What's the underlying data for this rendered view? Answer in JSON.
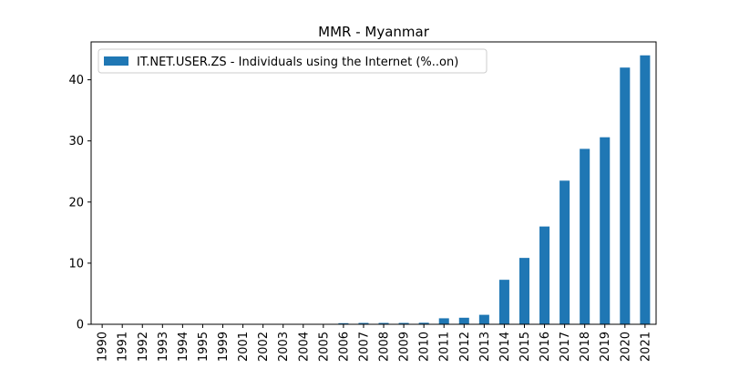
{
  "chart_data": {
    "type": "bar",
    "title": "MMR - Myanmar",
    "xlabel": "",
    "ylabel": "",
    "categories": [
      "1990",
      "1991",
      "1992",
      "1993",
      "1994",
      "1995",
      "1999",
      "2001",
      "2002",
      "2003",
      "2004",
      "2005",
      "2006",
      "2007",
      "2008",
      "2009",
      "2010",
      "2011",
      "2012",
      "2013",
      "2014",
      "2015",
      "2016",
      "2017",
      "2018",
      "2019",
      "2020",
      "2021"
    ],
    "series": [
      {
        "name": "IT.NET.USER.ZS - Individuals using the Internet (%..on)",
        "color": "#1f77b4",
        "values": [
          0,
          0,
          0,
          0,
          0,
          0,
          0.001,
          0.01,
          0.02,
          0.02,
          0.03,
          0.06,
          0.18,
          0.22,
          0.22,
          0.22,
          0.25,
          0.98,
          1.07,
          1.55,
          7.28,
          10.86,
          16.0,
          23.5,
          28.7,
          30.6,
          42.0,
          44.0
        ]
      }
    ],
    "ylim": [
      0,
      46.2
    ],
    "yticks": [
      0,
      10,
      20,
      30,
      40
    ],
    "grid": false,
    "legend": "top-left"
  }
}
